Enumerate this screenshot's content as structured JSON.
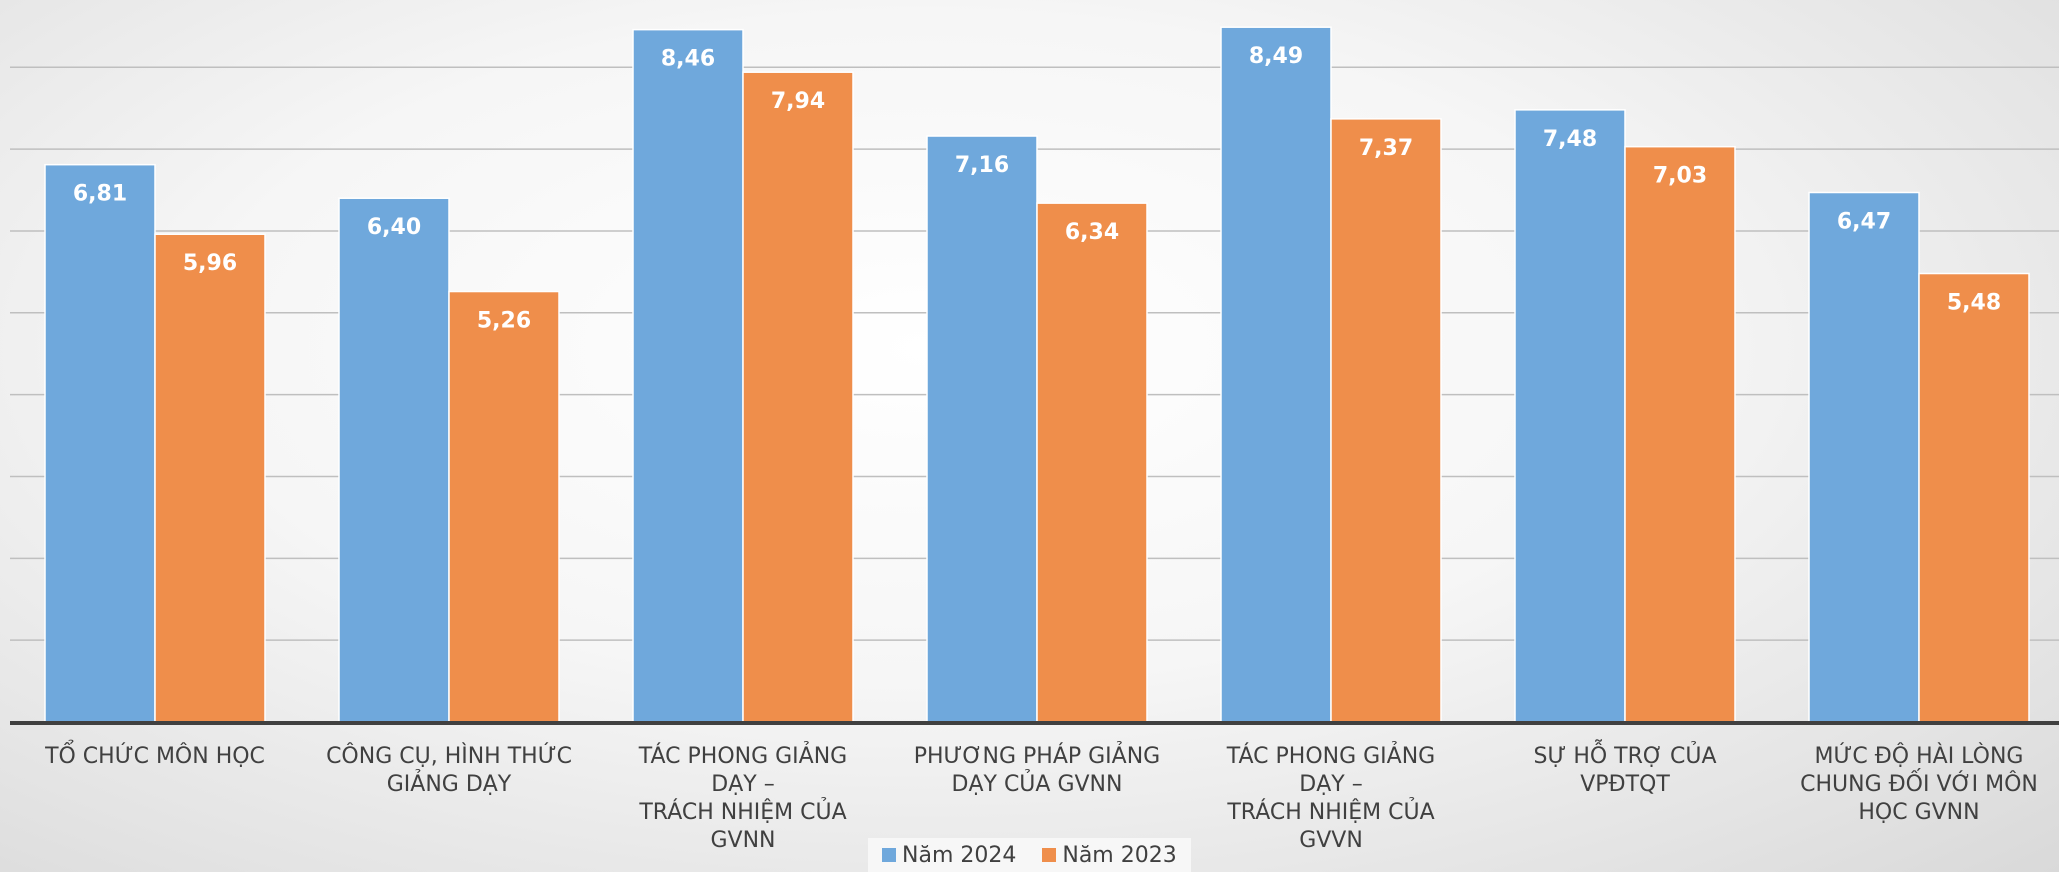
{
  "chart_data": {
    "type": "bar",
    "categories": [
      "TỔ CHỨC MÔN HỌC",
      "CÔNG CỤ, HÌNH THỨC\nGIẢNG DẠY",
      "TÁC PHONG GIẢNG DẠY –\nTRÁCH NHIỆM CỦA GVNN",
      "PHƯƠNG PHÁP GIẢNG\nDẠY CỦA GVNN",
      "TÁC PHONG GIẢNG DẠY –\nTRÁCH NHIỆM CỦA GVVN",
      "SỰ HỖ TRỢ CỦA VPĐTQT",
      "MỨC ĐỘ HÀI LÒNG\nCHUNG ĐỐI VỚI MÔN\nHỌC GVNN"
    ],
    "series": [
      {
        "name": "Năm 2024",
        "color": "#6fa8dc",
        "values": [
          6.81,
          6.4,
          8.46,
          7.16,
          8.49,
          7.48,
          6.47
        ],
        "labels": [
          "6,81",
          "6,40",
          "8,46",
          "7,16",
          "8,49",
          "7,48",
          "6,47"
        ]
      },
      {
        "name": "Năm 2023",
        "color": "#ef8e4b",
        "values": [
          5.96,
          5.26,
          7.94,
          6.34,
          7.37,
          7.03,
          5.48
        ],
        "labels": [
          "5,96",
          "5,26",
          "7,94",
          "6,34",
          "7,37",
          "7,03",
          "5,48"
        ]
      }
    ],
    "ylim": [
      0,
      8.7
    ],
    "gridlines": [
      1,
      2,
      3,
      4,
      5,
      6,
      7,
      8
    ],
    "grid": true,
    "title": "",
    "xlabel": "",
    "ylabel": "",
    "legend_position": "bottom"
  }
}
